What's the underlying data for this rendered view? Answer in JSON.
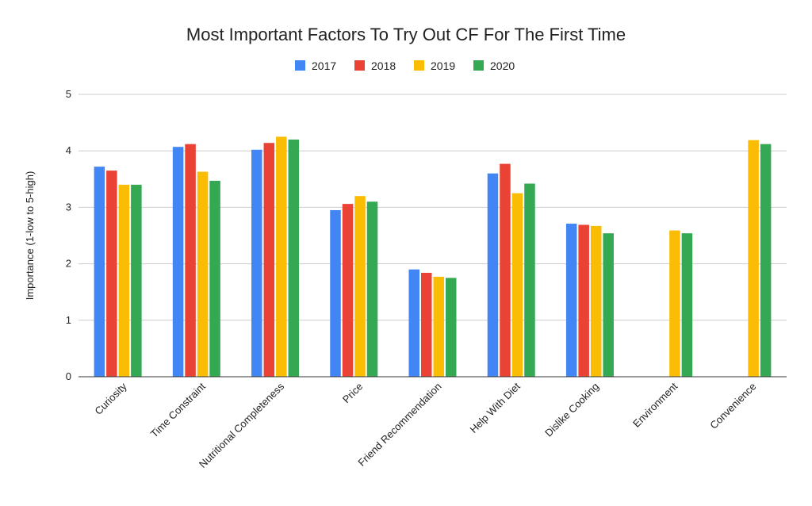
{
  "chart_data": {
    "type": "bar",
    "title": "Most Important Factors To Try Out CF For The First Time",
    "xlabel": "",
    "ylabel": "Importance (1-low to 5-high)",
    "ylim": [
      0,
      5
    ],
    "yticks": [
      0,
      1,
      2,
      3,
      4,
      5
    ],
    "grid": true,
    "legend_position": "top",
    "categories": [
      "Curiosity",
      "Time Constraint",
      "Nutritional Completeness",
      "Price",
      "Friend Recommendation",
      "Help With Diet",
      "Dislike Cooking",
      "Environment",
      "Convenience"
    ],
    "series": [
      {
        "name": "2017",
        "color": "#4285F4",
        "values": [
          3.72,
          4.07,
          4.02,
          2.95,
          1.9,
          3.6,
          2.71,
          null,
          null
        ]
      },
      {
        "name": "2018",
        "color": "#EA4335",
        "values": [
          3.65,
          4.12,
          4.14,
          3.06,
          1.84,
          3.77,
          2.69,
          null,
          null
        ]
      },
      {
        "name": "2019",
        "color": "#FBBC04",
        "values": [
          3.4,
          3.63,
          4.25,
          3.2,
          1.77,
          3.25,
          2.67,
          2.59,
          4.19
        ]
      },
      {
        "name": "2020",
        "color": "#34A853",
        "values": [
          3.4,
          3.47,
          4.2,
          3.1,
          1.75,
          3.42,
          2.54,
          2.54,
          4.12
        ]
      }
    ]
  }
}
